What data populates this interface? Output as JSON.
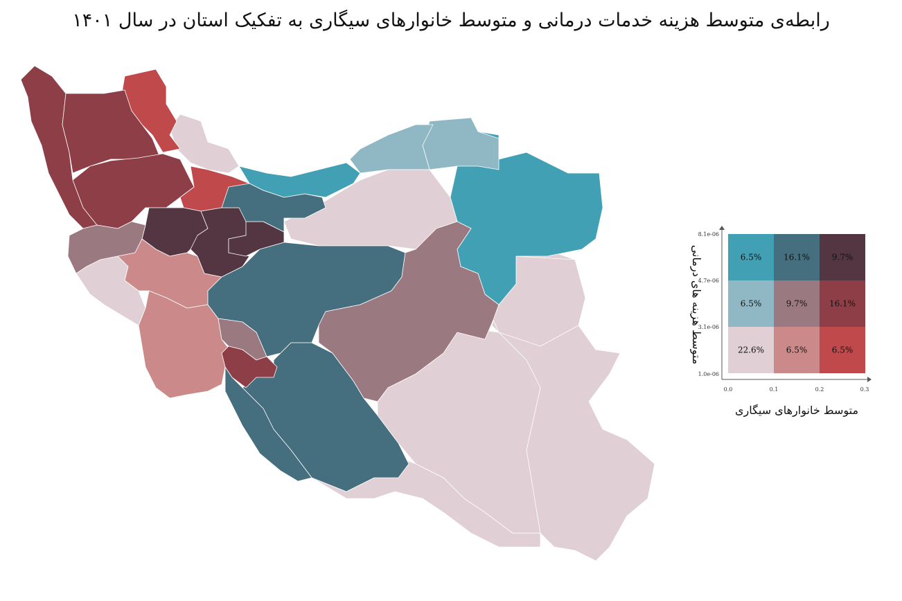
{
  "title": "رابطه‌ی متوسط هزینه خدمات درمانی و متوسط خانوارهای سیگاری به تفکیک استان در سال ۱۴۰۱",
  "colors": {
    "r1c1": "#e0cfd4",
    "r1c2": "#cb8a89",
    "r1c3": "#c0494c",
    "r2c1": "#8fb8c4",
    "r2c2": "#9a7a80",
    "r2c3": "#8d3e47",
    "r3c1": "#41a0b4",
    "r3c2": "#456f7f",
    "r3c3": "#543642"
  },
  "legend": {
    "xlabel": "متوسط خانوارهای سیگاری",
    "ylabel": "متوسط هزینه های درمانی",
    "x_ticks": [
      "0.0",
      "0.1",
      "0.2",
      "0.3"
    ],
    "y_ticks": [
      "1.0e-06",
      "3.1e-06",
      "4.7e-06",
      "8.1e-06"
    ],
    "cells": [
      [
        "6.5%",
        "16.1%",
        "9.7%"
      ],
      [
        "6.5%",
        "9.7%",
        "16.1%"
      ],
      [
        "22.6%",
        "6.5%",
        "6.5%"
      ]
    ]
  }
}
